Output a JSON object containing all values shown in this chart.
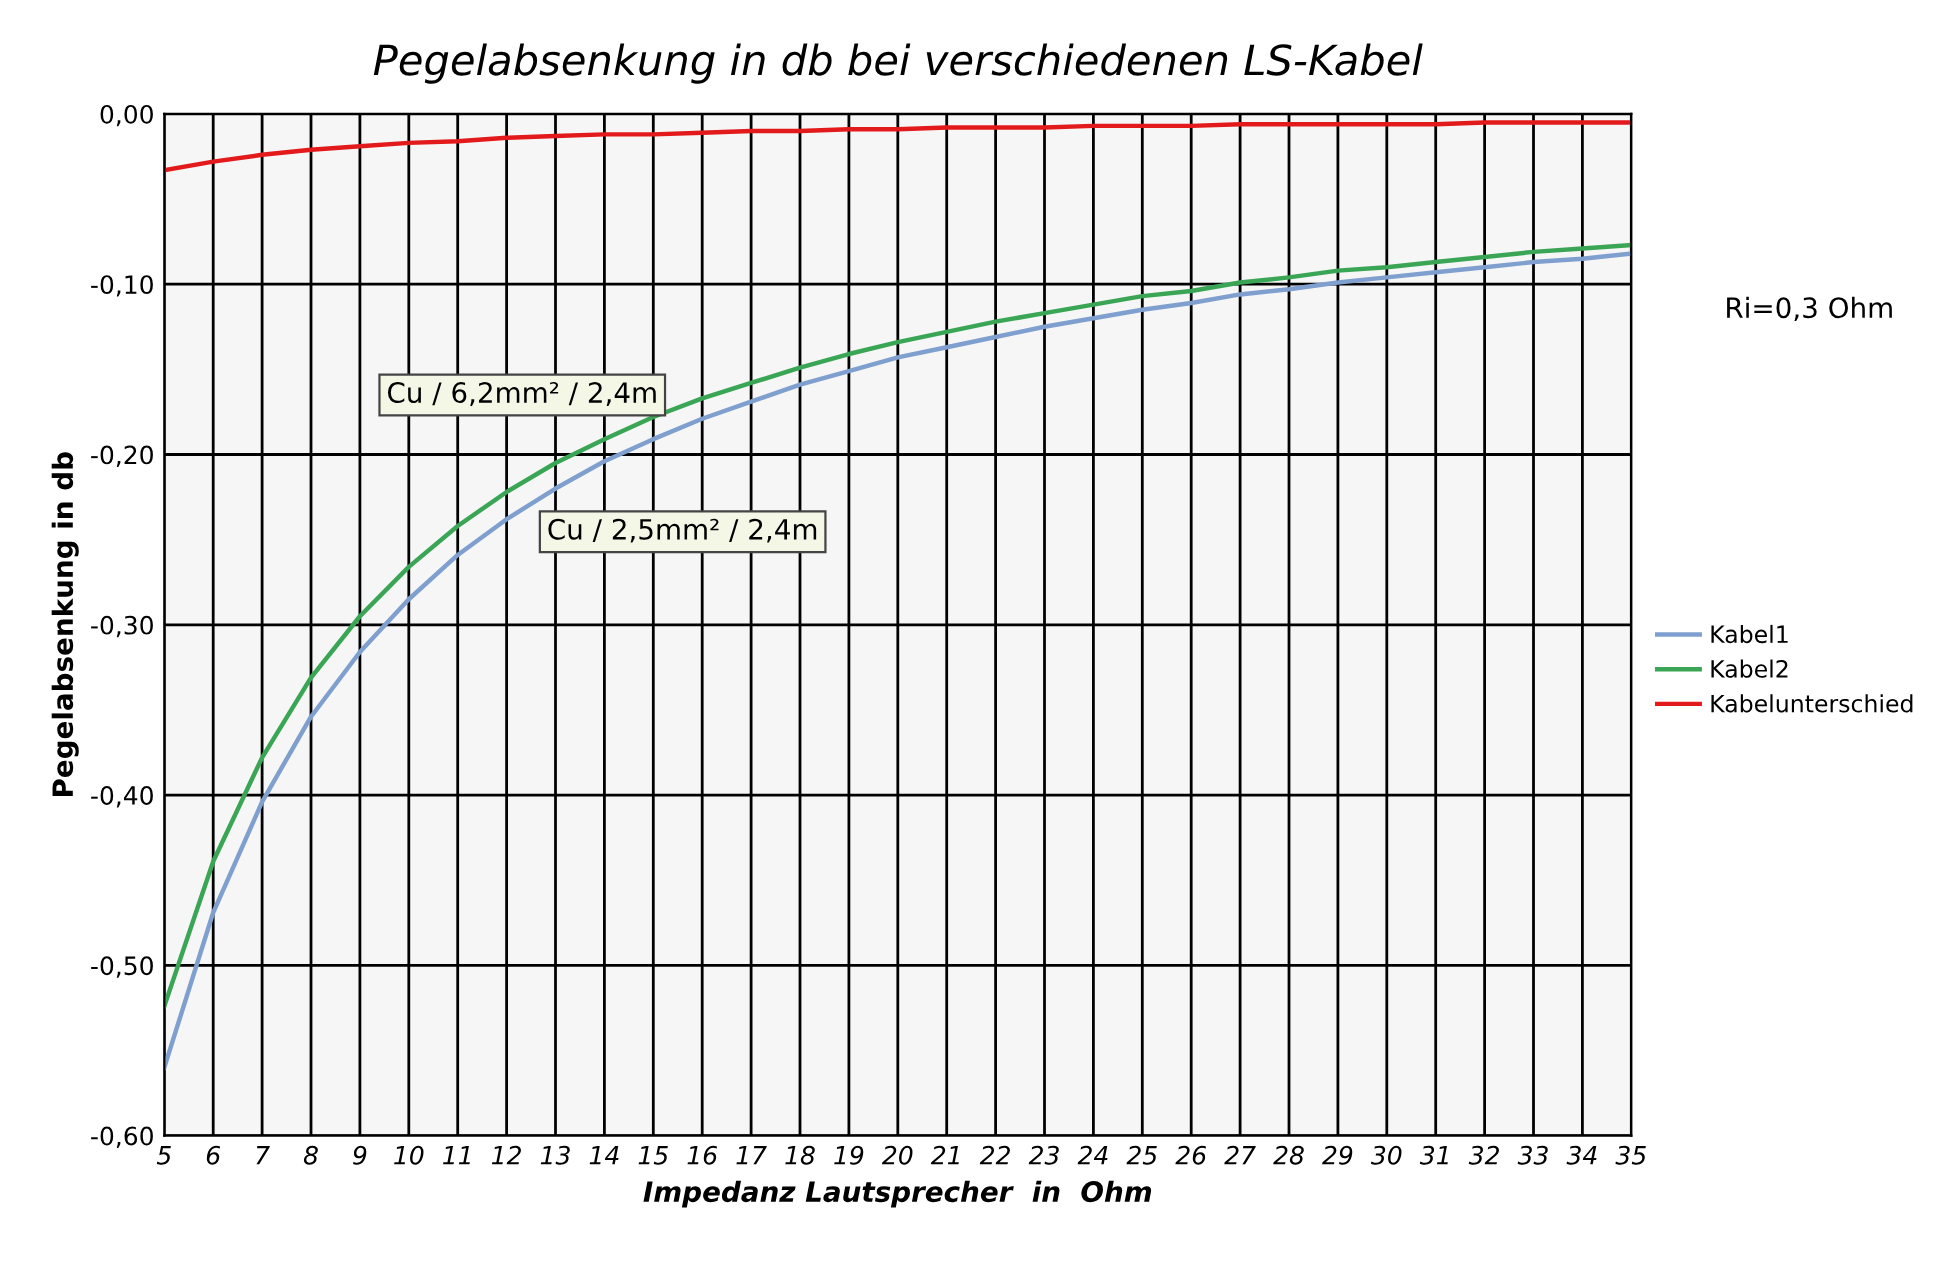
{
  "chart_data": {
    "type": "line",
    "title": "Pegelabsenkung in db bei verschiedenen LS-Kabel",
    "xlabel": "Impedanz Lautsprecher  in  Ohm",
    "ylabel": "Pegelabsenkung in db",
    "x": [
      5,
      6,
      7,
      8,
      9,
      10,
      11,
      12,
      13,
      14,
      15,
      16,
      17,
      18,
      19,
      20,
      21,
      22,
      23,
      24,
      25,
      26,
      27,
      28,
      29,
      30,
      31,
      32,
      33,
      34,
      35
    ],
    "series": [
      {
        "name": "Kabel1",
        "color": "#7f9fcf",
        "values": [
          -0.56,
          -0.469,
          -0.404,
          -0.354,
          -0.316,
          -0.285,
          -0.259,
          -0.238,
          -0.22,
          -0.204,
          -0.191,
          -0.179,
          -0.169,
          -0.159,
          -0.151,
          -0.143,
          -0.137,
          -0.131,
          -0.125,
          -0.12,
          -0.115,
          -0.111,
          -0.106,
          -0.103,
          -0.099,
          -0.096,
          -0.093,
          -0.09,
          -0.087,
          -0.085,
          -0.082
        ]
      },
      {
        "name": "Kabel2",
        "color": "#3aa655",
        "values": [
          -0.524,
          -0.439,
          -0.378,
          -0.331,
          -0.295,
          -0.266,
          -0.242,
          -0.222,
          -0.205,
          -0.191,
          -0.178,
          -0.167,
          -0.158,
          -0.149,
          -0.141,
          -0.134,
          -0.128,
          -0.122,
          -0.117,
          -0.112,
          -0.107,
          -0.104,
          -0.099,
          -0.096,
          -0.092,
          -0.09,
          -0.087,
          -0.084,
          -0.081,
          -0.079,
          -0.077
        ]
      },
      {
        "name": "Kabelunterschied",
        "color": "#e31a1c",
        "values": [
          -0.033,
          -0.028,
          -0.024,
          -0.021,
          -0.019,
          -0.017,
          -0.016,
          -0.014,
          -0.013,
          -0.012,
          -0.012,
          -0.011,
          -0.01,
          -0.01,
          -0.009,
          -0.009,
          -0.008,
          -0.008,
          -0.008,
          -0.007,
          -0.007,
          -0.007,
          -0.006,
          -0.006,
          -0.006,
          -0.006,
          -0.006,
          -0.005,
          -0.005,
          -0.005,
          -0.005
        ]
      }
    ],
    "xlim": [
      5,
      35
    ],
    "xticks": [
      5,
      6,
      7,
      8,
      9,
      10,
      11,
      12,
      13,
      14,
      15,
      16,
      17,
      18,
      19,
      20,
      21,
      22,
      23,
      24,
      25,
      26,
      27,
      28,
      29,
      30,
      31,
      32,
      33,
      34,
      35
    ],
    "ylim": [
      -0.6,
      0
    ],
    "yticks": [
      {
        "value": -0.6,
        "label": "-0,60"
      },
      {
        "value": -0.5,
        "label": "-0,50"
      },
      {
        "value": -0.4,
        "label": "-0,40"
      },
      {
        "value": -0.3,
        "label": "-0,30"
      },
      {
        "value": -0.2,
        "label": "-0,20"
      },
      {
        "value": -0.1,
        "label": "-0,10"
      },
      {
        "value": 0,
        "label": "0,00"
      }
    ],
    "annotations": [
      "Cu / 6,2mm² / 2,4m",
      "Cu / 2,5mm² / 2,4m",
      "Ri=0,3 Ohm"
    ],
    "grid": true,
    "legend": "right",
    "marker": "none",
    "line_style": "solid"
  }
}
